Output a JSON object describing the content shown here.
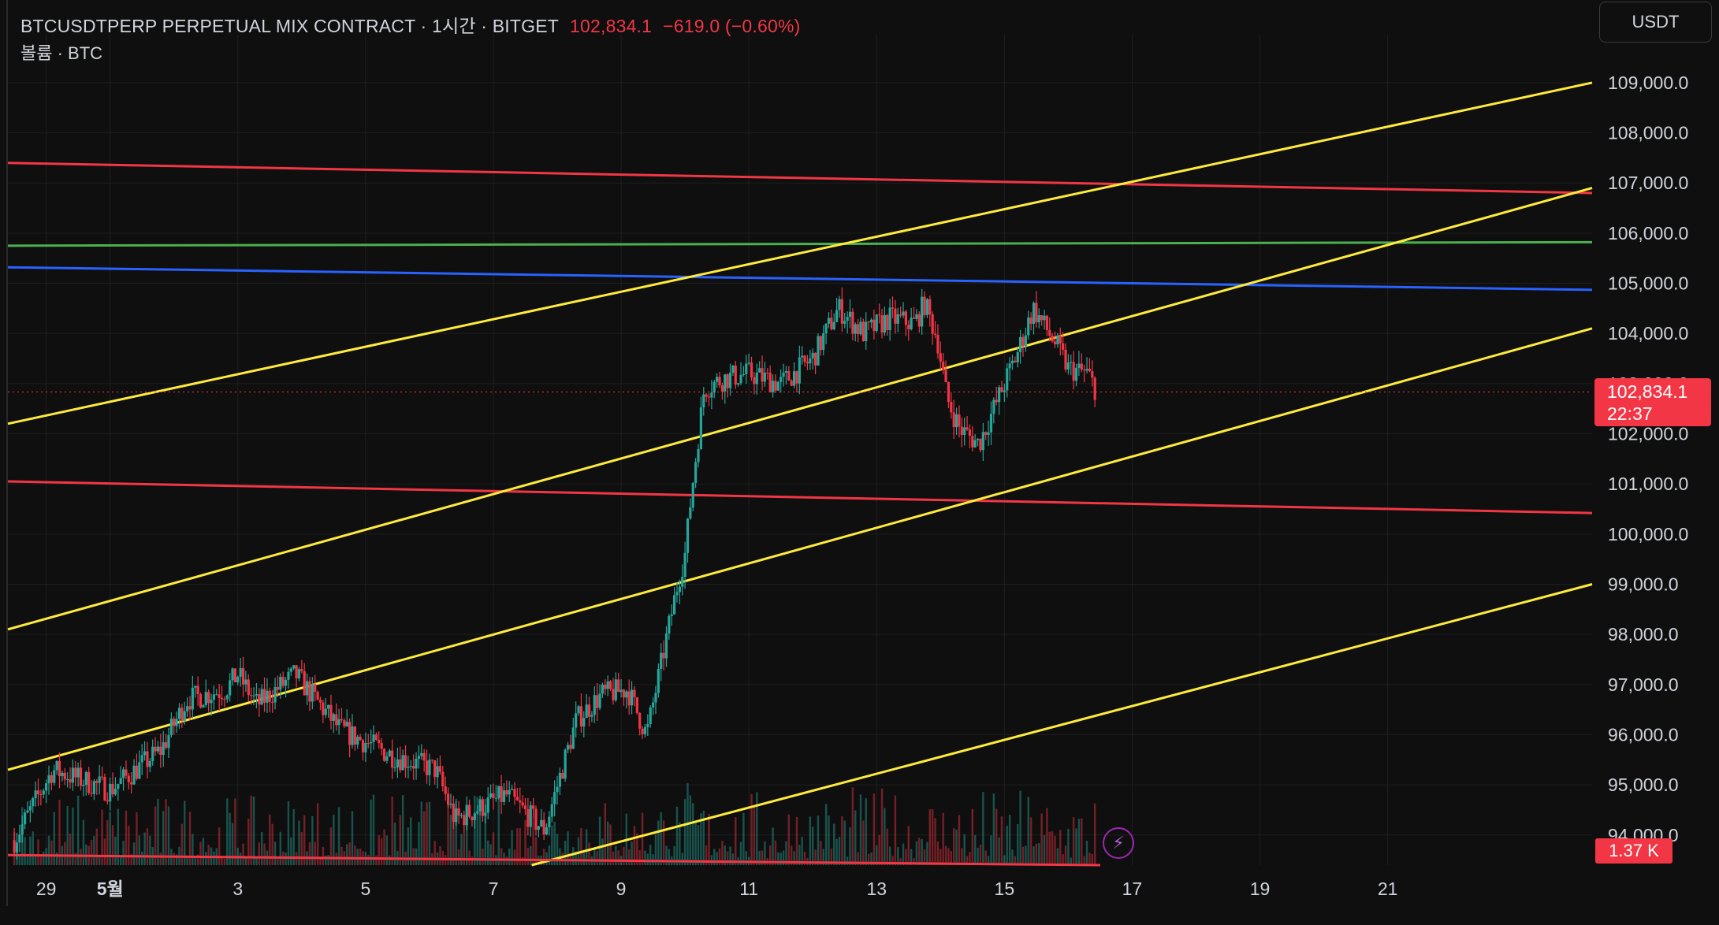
{
  "header": {
    "symbol": "BTCUSDTPERP PERPETUAL MIX CONTRACT · 1시간 · BITGET",
    "price": "102,834.1",
    "change": "−619.0 (−0.60%)",
    "volume_label": "볼륨 · BTC"
  },
  "unit_button": "USDT",
  "price_tag": {
    "price": "102,834.1",
    "countdown": "22:37"
  },
  "volume_tag": "1.37 K",
  "icons": {
    "bolt": "lightning-icon"
  },
  "colors": {
    "up": "#26a69a",
    "down": "#f23645",
    "yellow": "#ffeb3b",
    "red": "#f23645",
    "green": "#4caf50",
    "blue": "#2962ff"
  },
  "chart_data": {
    "type": "candlestick",
    "timeframe": "1시간",
    "x_tick_labels": [
      "29",
      "5월",
      "3",
      "5",
      "7",
      "9",
      "11",
      "13",
      "15",
      "17",
      "19",
      "21"
    ],
    "y_tick_labels": [
      "94,000.0",
      "95,000.0",
      "96,000.0",
      "97,000.0",
      "98,000.0",
      "99,000.0",
      "100,000.0",
      "101,000.0",
      "102,000.0",
      "103,000.0",
      "104,000.0",
      "105,000.0",
      "106,000.0",
      "107,000.0",
      "108,000.0",
      "109,000.0"
    ],
    "ylim": [
      93400,
      109800
    ],
    "xlim_days": [
      -1.6,
      23.2
    ],
    "last_price": 102834.1,
    "close_path": [
      {
        "d": -1.5,
        "p": 93900
      },
      {
        "d": -0.9,
        "p": 95300
      },
      {
        "d": 0.0,
        "p": 94900
      },
      {
        "d": 0.8,
        "p": 95700
      },
      {
        "d": 1.2,
        "p": 96700
      },
      {
        "d": 1.8,
        "p": 96900
      },
      {
        "d": 2.0,
        "p": 97200
      },
      {
        "d": 2.3,
        "p": 96600
      },
      {
        "d": 2.9,
        "p": 97200
      },
      {
        "d": 3.6,
        "p": 96100
      },
      {
        "d": 4.4,
        "p": 95600
      },
      {
        "d": 5.1,
        "p": 95300
      },
      {
        "d": 5.4,
        "p": 94300
      },
      {
        "d": 6.2,
        "p": 94800
      },
      {
        "d": 6.8,
        "p": 94100
      },
      {
        "d": 7.3,
        "p": 96300
      },
      {
        "d": 7.7,
        "p": 96800
      },
      {
        "d": 8.1,
        "p": 96900
      },
      {
        "d": 8.4,
        "p": 96000
      },
      {
        "d": 8.9,
        "p": 99100
      },
      {
        "d": 9.0,
        "p": 99600
      },
      {
        "d": 9.1,
        "p": 100800
      },
      {
        "d": 9.3,
        "p": 102900
      },
      {
        "d": 9.6,
        "p": 103100
      },
      {
        "d": 10.0,
        "p": 103200
      },
      {
        "d": 10.5,
        "p": 103000
      },
      {
        "d": 11.0,
        "p": 103500
      },
      {
        "d": 11.4,
        "p": 104500
      },
      {
        "d": 11.8,
        "p": 104000
      },
      {
        "d": 12.2,
        "p": 104300
      },
      {
        "d": 12.6,
        "p": 104200
      },
      {
        "d": 12.75,
        "p": 104600
      },
      {
        "d": 12.95,
        "p": 103900
      },
      {
        "d": 13.1,
        "p": 102700
      },
      {
        "d": 13.3,
        "p": 102100
      },
      {
        "d": 13.6,
        "p": 101800
      },
      {
        "d": 13.9,
        "p": 102700
      },
      {
        "d": 14.2,
        "p": 103600
      },
      {
        "d": 14.45,
        "p": 104500
      },
      {
        "d": 14.8,
        "p": 103800
      },
      {
        "d": 15.0,
        "p": 103300
      },
      {
        "d": 15.3,
        "p": 103200
      },
      {
        "d": 15.45,
        "p": 102834
      }
    ],
    "trendlines": [
      {
        "color": "red",
        "from": {
          "d": -1.6,
          "p": 107400
        },
        "to": {
          "d": 23.2,
          "p": 106800
        }
      },
      {
        "color": "green",
        "from": {
          "d": -1.6,
          "p": 105750
        },
        "to": {
          "d": 23.2,
          "p": 105820
        }
      },
      {
        "color": "blue",
        "from": {
          "d": -1.6,
          "p": 105320
        },
        "to": {
          "d": 23.2,
          "p": 104870
        }
      },
      {
        "color": "red",
        "from": {
          "d": -1.6,
          "p": 101050
        },
        "to": {
          "d": 23.2,
          "p": 100420
        }
      },
      {
        "color": "yellow",
        "from": {
          "d": -1.6,
          "p": 102200
        },
        "to": {
          "d": 23.2,
          "p": 109000
        }
      },
      {
        "color": "yellow",
        "from": {
          "d": -1.6,
          "p": 98100
        },
        "to": {
          "d": 23.2,
          "p": 106900
        }
      },
      {
        "color": "yellow",
        "from": {
          "d": -1.6,
          "p": 95300
        },
        "to": {
          "d": 23.2,
          "p": 104100
        }
      },
      {
        "color": "yellow",
        "from": {
          "d": 6.6,
          "p": 93400
        },
        "to": {
          "d": 23.2,
          "p": 99000
        }
      },
      {
        "color": "red",
        "from": {
          "d": -1.6,
          "p": 93600
        },
        "to": {
          "d": 15.5,
          "p": 93400
        }
      }
    ]
  }
}
